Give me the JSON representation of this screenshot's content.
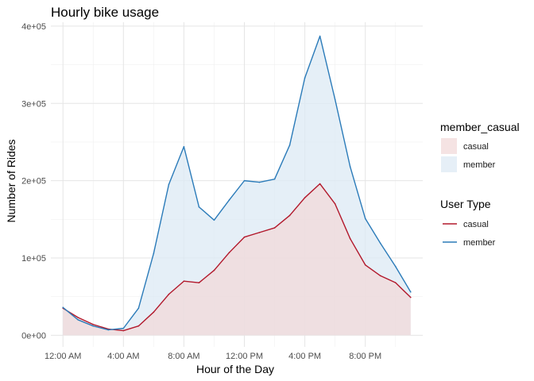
{
  "chart_data": {
    "type": "area",
    "title": "Hourly bike usage",
    "xlabel": "Hour of the Day",
    "ylabel": "Number of Rides",
    "x": [
      0,
      1,
      2,
      3,
      4,
      5,
      6,
      7,
      8,
      9,
      10,
      11,
      12,
      13,
      14,
      15,
      16,
      17,
      18,
      19,
      20,
      21,
      22,
      23
    ],
    "xlim": [
      -0.8,
      23.8
    ],
    "ylim": [
      -15000,
      405000
    ],
    "x_ticks": [
      {
        "value": 0,
        "label": "12:00 AM"
      },
      {
        "value": 4,
        "label": "4:00 AM"
      },
      {
        "value": 8,
        "label": "8:00 AM"
      },
      {
        "value": 12,
        "label": "12:00 PM"
      },
      {
        "value": 16,
        "label": "4:00 PM"
      },
      {
        "value": 20,
        "label": "8:00 PM"
      }
    ],
    "y_ticks": [
      {
        "value": 0,
        "label": "0e+00"
      },
      {
        "value": 100000,
        "label": "1e+05"
      },
      {
        "value": 200000,
        "label": "2e+05"
      },
      {
        "value": 300000,
        "label": "3e+05"
      },
      {
        "value": 400000,
        "label": "4e+05"
      }
    ],
    "grid": true,
    "series": [
      {
        "name": "casual",
        "line_color": "#b2182b",
        "fill_color": "#f2dada",
        "values": [
          35000,
          23000,
          14000,
          8000,
          6000,
          12000,
          30000,
          53000,
          70000,
          68000,
          84000,
          107000,
          127000,
          133000,
          139000,
          155000,
          178000,
          196000,
          170000,
          125000,
          91000,
          77000,
          68000,
          49000
        ]
      },
      {
        "name": "member",
        "line_color": "#2b7bb9",
        "fill_color": "#dce9f4",
        "values": [
          36000,
          20000,
          12000,
          7000,
          9000,
          35000,
          106000,
          195000,
          244000,
          166000,
          149000,
          175000,
          200000,
          198000,
          202000,
          246000,
          333000,
          387000,
          305000,
          218000,
          151000,
          119000,
          89000,
          56000
        ]
      }
    ],
    "legends": [
      {
        "title": "member_casual",
        "kind": "fill",
        "items": [
          "casual",
          "member"
        ]
      },
      {
        "title": "User Type",
        "kind": "line",
        "items": [
          "casual",
          "member"
        ]
      }
    ],
    "legend_position": "right"
  }
}
